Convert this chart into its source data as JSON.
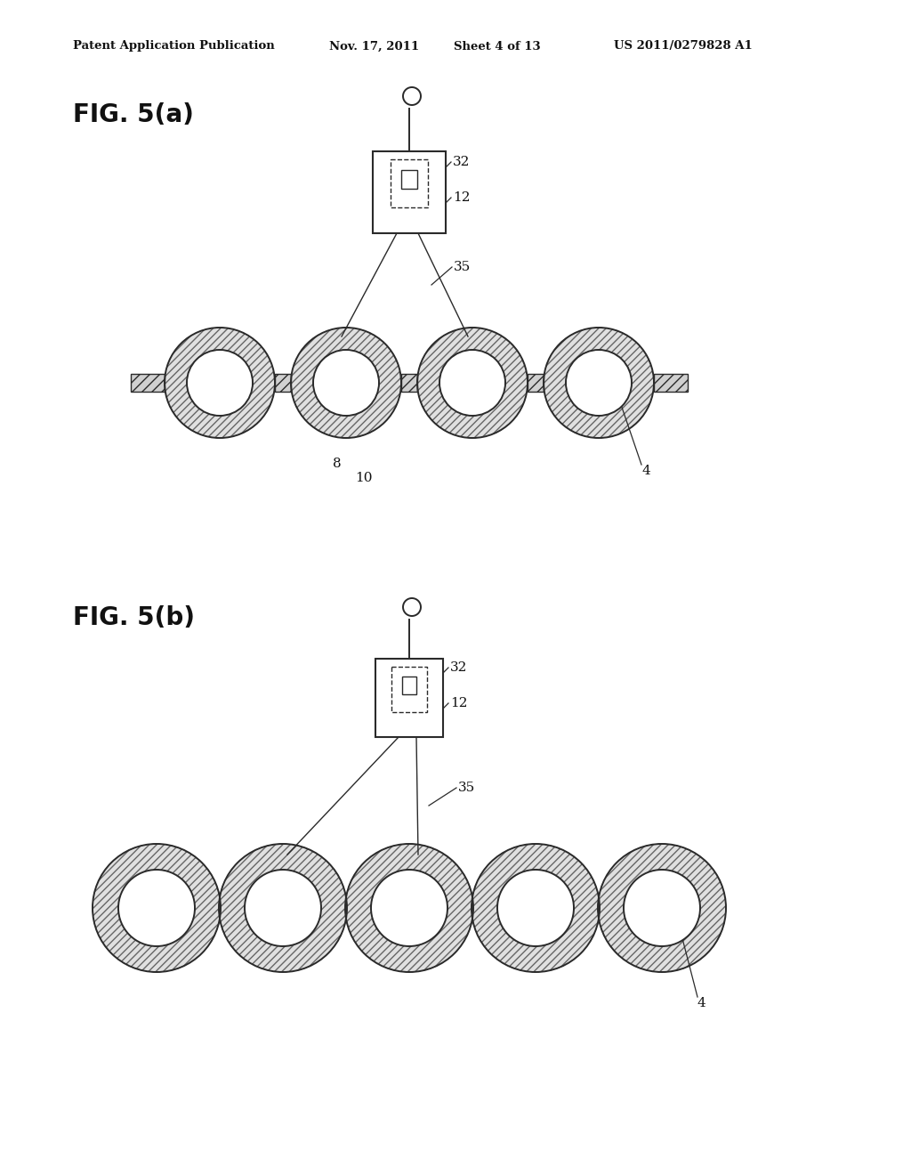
{
  "bg_color": "#ffffff",
  "header_text": "Patent Application Publication",
  "header_date": "Nov. 17, 2011",
  "header_sheet": "Sheet 4 of 13",
  "header_patent": "US 2011/0279828 A1",
  "fig_a_label": "FIG. 5(a)",
  "fig_b_label": "FIG. 5(b)",
  "label_32": "32",
  "label_12": "12",
  "label_35": "35",
  "label_8": "8",
  "label_10": "10",
  "label_4": "4",
  "line_color": "#2a2a2a",
  "hatch_color": "#555555"
}
